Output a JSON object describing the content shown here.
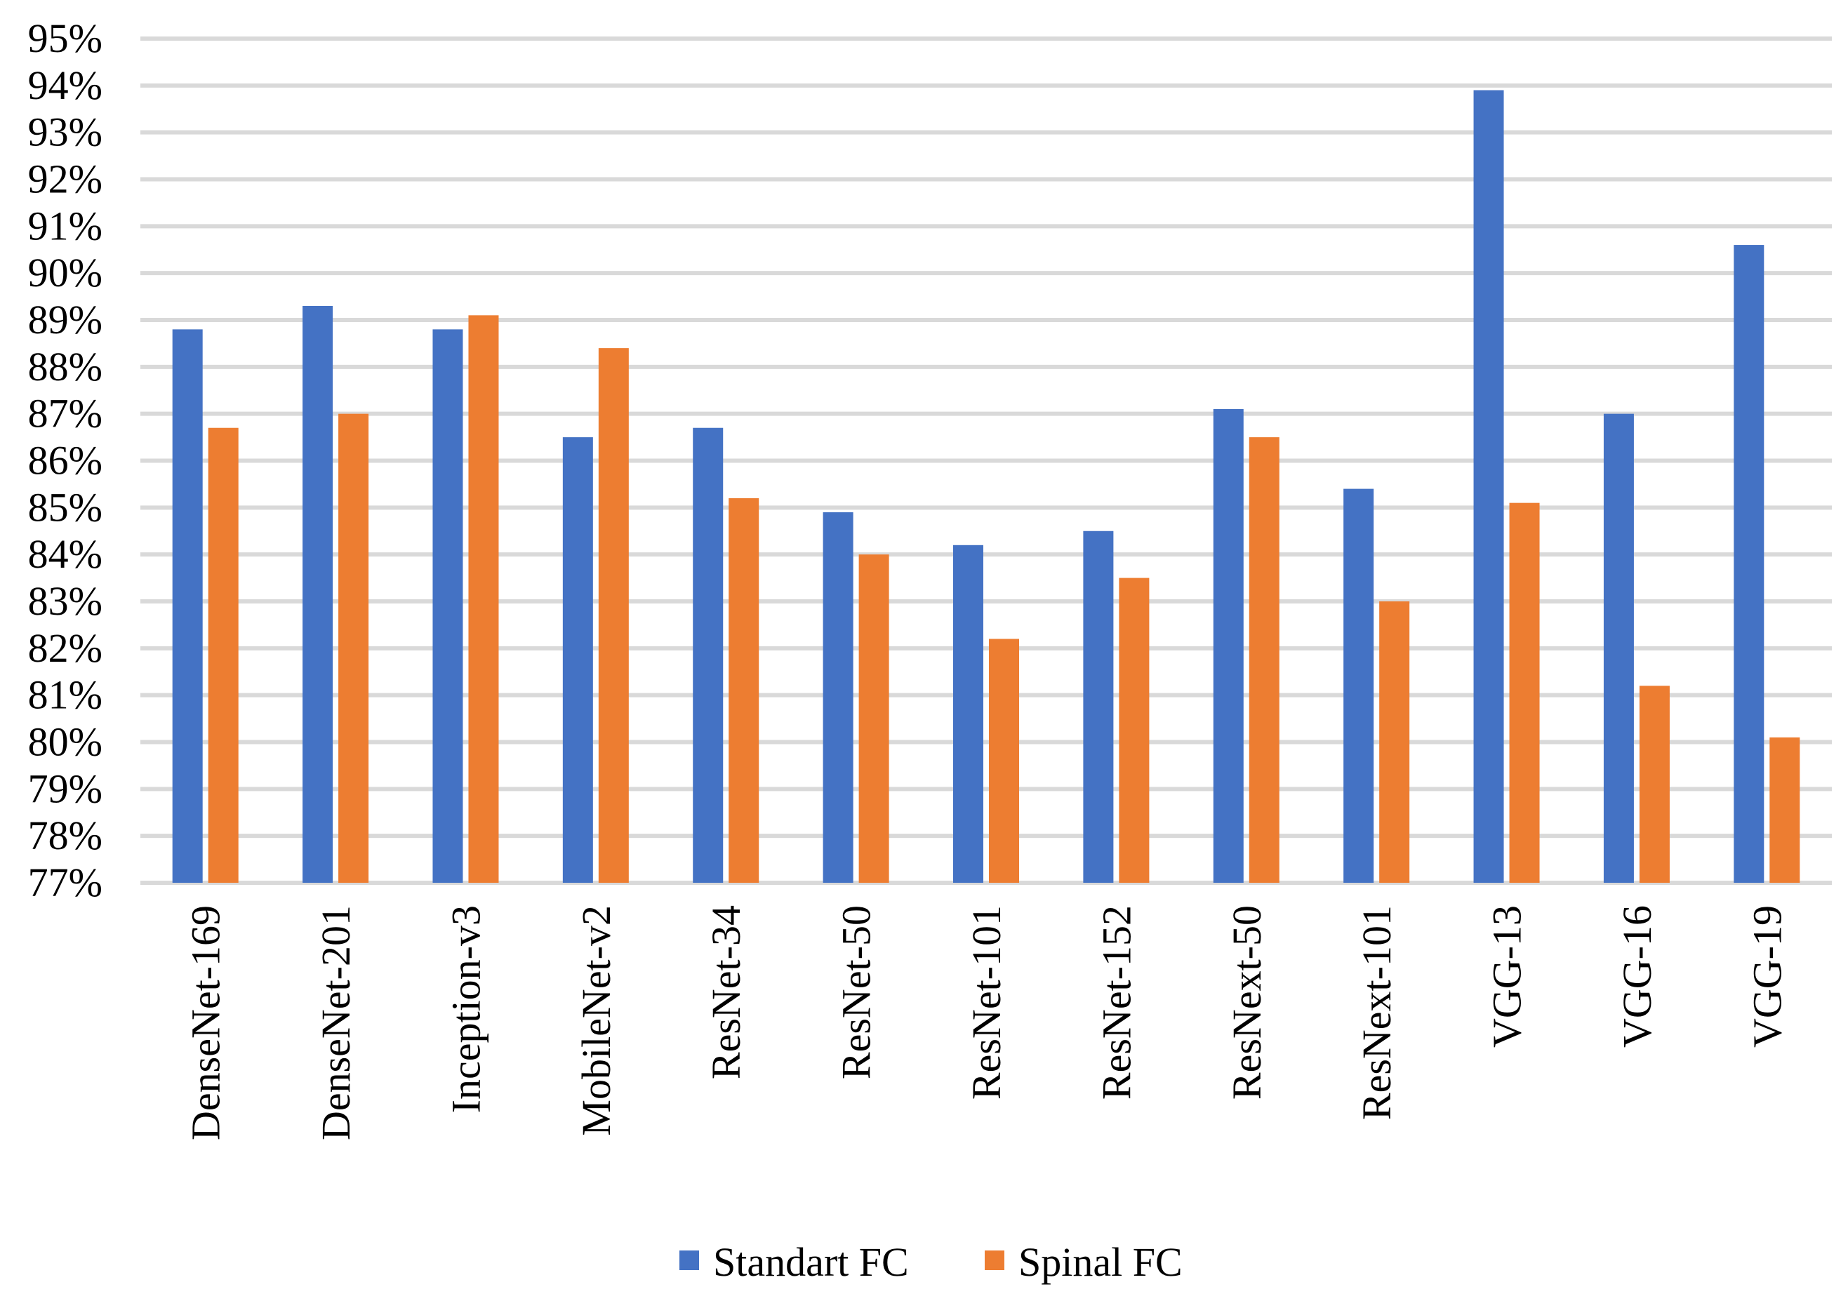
{
  "chart_data": {
    "type": "bar",
    "title": "",
    "xlabel": "",
    "ylabel": "",
    "ylim": [
      77,
      95
    ],
    "yticks": [
      "77%",
      "78%",
      "79%",
      "80%",
      "81%",
      "82%",
      "83%",
      "84%",
      "85%",
      "86%",
      "87%",
      "88%",
      "89%",
      "90%",
      "91%",
      "92%",
      "93%",
      "94%",
      "95%"
    ],
    "grid": true,
    "legend_position": "bottom",
    "categories": [
      "DenseNet-169",
      "DenseNet-201",
      "Inception-v3",
      "MobileNet-v2",
      "ResNet-34",
      "ResNet-50",
      "ResNet-101",
      "ResNet-152",
      "ResNext-50",
      "ResNext-101",
      "VGG-13",
      "VGG-16",
      "VGG-19"
    ],
    "series": [
      {
        "name": "Standart FC",
        "color": "#4472c4",
        "values": [
          88.8,
          89.3,
          88.8,
          86.5,
          86.7,
          84.9,
          84.2,
          84.5,
          87.1,
          85.4,
          93.9,
          87.0,
          90.6
        ]
      },
      {
        "name": "Spinal FC",
        "color": "#ed7d31",
        "values": [
          86.7,
          87.0,
          89.1,
          88.4,
          85.2,
          84.0,
          82.2,
          83.5,
          86.5,
          83.0,
          85.1,
          81.2,
          80.1
        ]
      }
    ]
  }
}
